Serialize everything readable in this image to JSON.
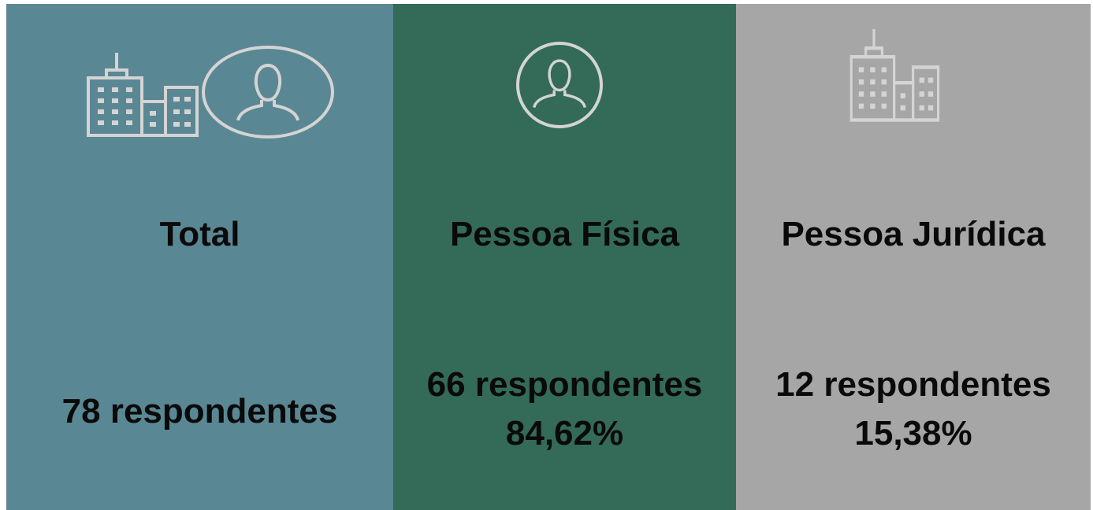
{
  "panels": [
    {
      "title": "Total",
      "count": "78 respondentes"
    },
    {
      "title": "Pessoa Física",
      "count": "66 respondentes",
      "percent": "84,62%"
    },
    {
      "title": "Pessoa Jurídica",
      "count": "12 respondentes",
      "percent": "15,38%"
    }
  ]
}
